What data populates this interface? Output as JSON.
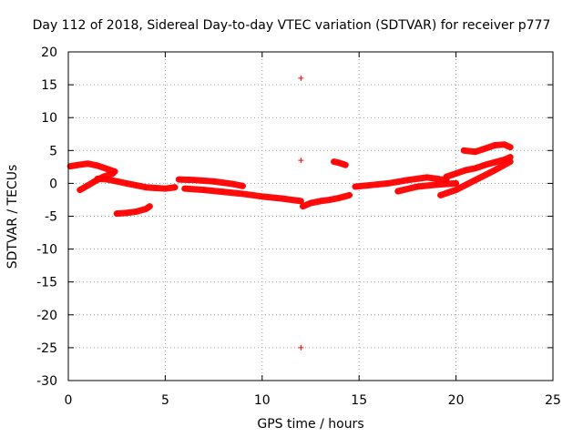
{
  "chart_data": {
    "type": "scatter",
    "title": "Day 112 of 2018, Sidereal Day-to-day VTEC variation (SDTVAR) for receiver p777",
    "xlabel": "GPS time / hours",
    "ylabel": "SDTVAR / TECUs",
    "xlim": [
      0,
      25
    ],
    "ylim": [
      -30,
      20
    ],
    "xticks": [
      0,
      5,
      10,
      15,
      20,
      25
    ],
    "yticks": [
      -30,
      -25,
      -20,
      -15,
      -10,
      -5,
      0,
      5,
      10,
      15,
      20
    ],
    "grid": true,
    "marker": "+",
    "series": [
      {
        "name": "SDTVAR",
        "color": "#ff0000",
        "segments": [
          {
            "x": [
              0.1,
              0.5,
              1.0,
              1.5,
              2.0,
              2.4
            ],
            "y": [
              2.6,
              2.8,
              3.0,
              2.7,
              2.2,
              1.8
            ]
          },
          {
            "x": [
              0.6,
              0.9,
              1.3,
              1.8,
              2.3
            ],
            "y": [
              -1.0,
              -0.5,
              0.2,
              1.0,
              1.5
            ]
          },
          {
            "x": [
              1.5,
              2.0,
              2.5,
              3.0,
              3.5,
              4.0,
              4.5,
              5.0,
              5.5
            ],
            "y": [
              0.7,
              0.6,
              0.3,
              0.0,
              -0.3,
              -0.6,
              -0.7,
              -0.8,
              -0.6
            ]
          },
          {
            "x": [
              2.5,
              3.0,
              3.5,
              4.0,
              4.2
            ],
            "y": [
              -4.6,
              -4.5,
              -4.3,
              -3.9,
              -3.5
            ]
          },
          {
            "x": [
              5.7,
              6.5,
              7.5,
              8.5,
              9.0
            ],
            "y": [
              0.6,
              0.5,
              0.3,
              -0.1,
              -0.4
            ]
          },
          {
            "x": [
              6.0,
              7.0,
              8.0,
              9.0,
              10.0,
              11.0,
              12.0
            ],
            "y": [
              -0.8,
              -1.0,
              -1.3,
              -1.6,
              -2.0,
              -2.3,
              -2.7
            ]
          },
          {
            "x": [
              12.1,
              12.5,
              13.0,
              13.5,
              14.0,
              14.5
            ],
            "y": [
              -3.5,
              -3.0,
              -2.7,
              -2.5,
              -2.2,
              -1.8
            ]
          },
          {
            "x": [
              13.7,
              14.0,
              14.3
            ],
            "y": [
              3.3,
              3.1,
              2.8
            ]
          },
          {
            "x": [
              14.8,
              15.5,
              16.5,
              17.5,
              18.5,
              19.5
            ],
            "y": [
              -0.5,
              -0.3,
              0.0,
              0.5,
              0.9,
              0.5
            ]
          },
          {
            "x": [
              17.0,
              18.0,
              19.0,
              20.0
            ],
            "y": [
              -1.2,
              -0.5,
              -0.2,
              0.0
            ]
          },
          {
            "x": [
              19.5,
              20.0,
              20.5,
              21.0,
              21.5,
              22.0,
              22.5,
              22.8
            ],
            "y": [
              1.0,
              1.5,
              2.0,
              2.3,
              2.8,
              3.2,
              3.6,
              4.0
            ]
          },
          {
            "x": [
              19.2,
              20.0,
              21.0,
              22.0,
              22.8
            ],
            "y": [
              -1.8,
              -1.0,
              0.5,
              2.0,
              3.3
            ]
          },
          {
            "x": [
              20.4,
              21.0,
              21.5,
              22.0,
              22.5,
              22.8
            ],
            "y": [
              5.0,
              4.8,
              5.3,
              5.8,
              5.9,
              5.5
            ]
          }
        ],
        "outliers": {
          "x": [
            12.0,
            12.0,
            12.0
          ],
          "y": [
            16.0,
            3.5,
            -25.0
          ]
        }
      }
    ]
  }
}
